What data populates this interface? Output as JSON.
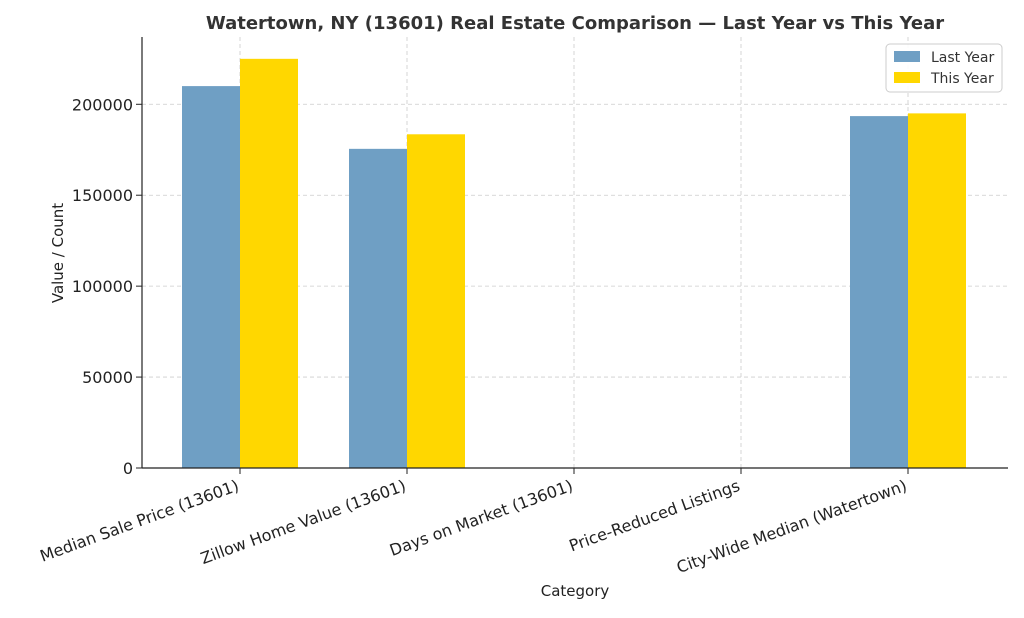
{
  "chart_data": {
    "type": "bar",
    "title": "Watertown, NY (13601) Real Estate Comparison — Last Year vs This Year",
    "xlabel": "Category",
    "ylabel": "Value / Count",
    "categories": [
      "Median Sale Price (13601)",
      "Zillow Home Value (13601)",
      "Days on Market (13601)",
      "Price-Reduced Listings",
      "City-Wide Median (Watertown)"
    ],
    "series": [
      {
        "name": "Last Year",
        "color": "#6f9fc4",
        "values": [
          210000,
          175500,
          0,
          0,
          193500
        ]
      },
      {
        "name": "This Year",
        "color": "#ffd700",
        "values": [
          225000,
          183500,
          0,
          0,
          195000
        ]
      }
    ],
    "ylim": [
      0,
      237000
    ],
    "yticks": [
      0,
      50000,
      100000,
      150000,
      200000
    ],
    "ytick_labels": [
      "0",
      "50000",
      "100000",
      "150000",
      "200000"
    ],
    "grid": true,
    "legend_position": "top-right"
  }
}
